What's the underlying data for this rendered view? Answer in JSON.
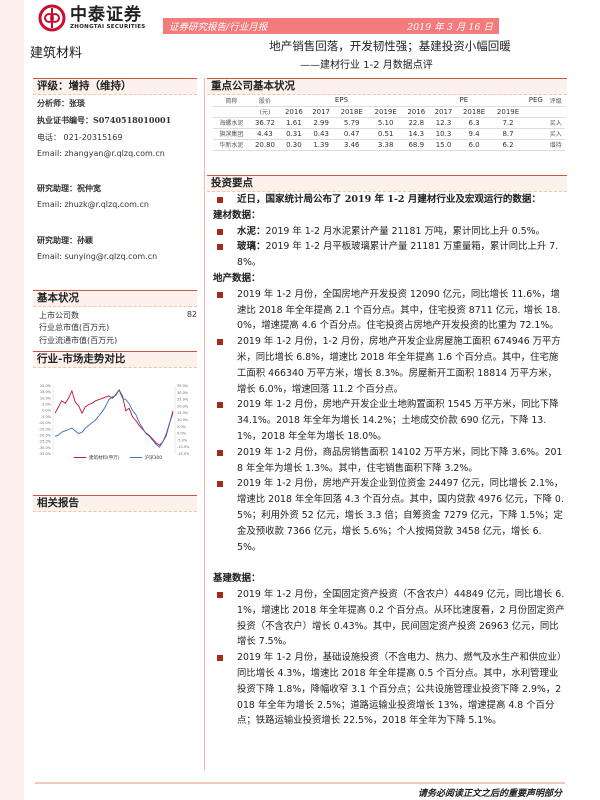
{
  "header": {
    "company_cn": "中泰证券",
    "company_en": "ZHONGTAI SECURITIES",
    "report_type": "证券研究报告/行业月报",
    "date": "2019 年 3 月 16 日",
    "sector": "建筑材料",
    "title": "地产销售回落，开发韧性强；基建投资小幅回暖",
    "subtitle": "——建材行业 1-2 月数据点评"
  },
  "left": {
    "rating": "评级：增持（维持）",
    "analyst": [
      {
        "label": "分析师：",
        "value": "张琰"
      },
      {
        "label": "执业证书编号：",
        "value": "S0740518010001"
      },
      {
        "label": "电话：",
        "value": "021-20315169"
      },
      {
        "label": "Email:",
        "value": "zhangyan@r.qlzq.com.cn"
      }
    ],
    "assistants": [
      {
        "label": "研究助理：",
        "name": "祝仲宽",
        "email_label": "Email:",
        "email": "zhuzk@r.qlzq.com.cn"
      },
      {
        "label": "研究助理：",
        "name": "孙颖",
        "email_label": "Email:",
        "email": "sunying@r.qlzq.com.cn"
      }
    ],
    "basic_title": "基本状况",
    "basic": [
      {
        "label": "上市公司数",
        "value": "82"
      },
      {
        "label": "行业总市值(百万元)",
        "value": ""
      },
      {
        "label": "行业流通市值(百万元)",
        "value": ""
      }
    ],
    "trend_title": "行业-市场走势对比",
    "related_title": "相关报告"
  },
  "table": {
    "title": "重点公司基本状况",
    "h": {
      "name": "简称",
      "price": "股价",
      "price_unit": "(元)",
      "eps": "EPS",
      "pe": "PE",
      "peg": "PEG",
      "rating": "评级",
      "years": [
        "2016",
        "2017",
        "2018E",
        "2019E"
      ]
    },
    "rows": [
      {
        "name": "海螺水泥",
        "price": "36.72",
        "eps": [
          "1.61",
          "2.99",
          "5.79",
          "5.10"
        ],
        "pe": [
          "22.8",
          "12.3",
          "6.3",
          "7.2"
        ],
        "peg": "",
        "rating": "买入"
      },
      {
        "name": "旗滨集团",
        "price": "4.43",
        "eps": [
          "0.31",
          "0.43",
          "0.47",
          "0.51"
        ],
        "pe": [
          "14.3",
          "10.3",
          "9.4",
          "8.7"
        ],
        "peg": "",
        "rating": "买入"
      },
      {
        "name": "华新水泥",
        "price": "20.80",
        "eps": [
          "0.30",
          "1.39",
          "3.46",
          "3.38"
        ],
        "pe": [
          "68.9",
          "15.0",
          "6.0",
          "6.2"
        ],
        "peg": "",
        "rating": "增持"
      }
    ]
  },
  "invest": {
    "title": "投资要点",
    "intro": "近日，国家统计局公布了 2019 年 1-2 月建材行业及宏观运行的数据：",
    "material_title": "建材数据：",
    "material": [
      {
        "k": "水泥：",
        "v": "2019 年 1-2 月水泥累计产量 21181 万吨，累计同比上升 0.5%。"
      },
      {
        "k": "玻璃：",
        "v": "2019 年 1-2 月平板玻璃累计产量 21181 万重量箱，累计同比上升 7.8%。"
      }
    ],
    "property_title": "地产数据：",
    "property": [
      "2019 年 1-2 月份，全国房地产开发投资 12090 亿元，同比增长 11.6%，增速比 2018 年全年提高 2.1 个百分点。其中，住宅投资 8711 亿元，增长 18.0%，增速提高 4.6 个百分点。住宅投资占房地产开发投资的比重为 72.1%。",
      "2019 年 1-2 月份，1-2 月份，房地产开发企业房屋施工面积 674946 万平方米，同比增长 6.8%，增速比 2018 年全年提高 1.6 个百分点。其中，住宅施工面积 466340 万平方米，增长 8.3%。房屋新开工面积 18814 万平方米，增长 6.0%，增速回落 11.2 个百分点。",
      "2019 年 1-2 月份，房地产开发企业土地购置面积 1545 万平方米，同比下降 34.1%。2018 年全年为增长 14.2%；土地成交价款 690 亿元，下降 13.1%，2018 年全年为增长 18.0%。",
      "2019 年 1-2 月份，商品房销售面积 14102 万平方米，同比下降 3.6%。2018 年全年为增长 1.3%。其中，住宅销售面积下降 3.2%。",
      "2019 年 1-2 月份，房地产开发企业到位资金 24497 亿元，同比增长 2.1%，增速比 2018 年全年回落 4.3 个百分点。其中，国内贷款 4976 亿元，下降 0.5%；利用外资 52 亿元，增长 3.3 倍；自筹资金 7279 亿元，下降 1.5%；定金及预收款 7366 亿元，增长 5.6%；个人按揭贷款 3458 亿元，增长 6.5%。"
    ],
    "infra_title": "基建数据：",
    "infra": [
      "2019 年 1-2 月份，全国固定资产投资（不含农户）44849 亿元，同比增长 6.1%，增速比 2018 年全年提高 0.2 个百分点。从环比速度看，2 月份固定资产投资（不含农户）增长 0.43%。其中，民间固定资产投资 26963 亿元，同比增长 7.5%。",
      "2019 年 1-2 月份，基础设施投资（不含电力、热力、燃气及水生产和供应业）同比增长 4.3%，增速比 2018 年全年提高 0.5 个百分点。其中，水利管理业投资下降 1.8%，降幅收窄 3.1 个百分点；公共设施管理业投资下降 2.9%，2018 年全年为增长 2.5%；道路运输业投资增长 13%，增速提高 4.8 个百分点；铁路运输业投资增长 22.5%，2018 年全年为下降 5.1%。"
    ]
  },
  "footer": "请务必阅读正文之后的重要声明部分",
  "chart_data": {
    "type": "line",
    "left_ticks": [
      "20.0%",
      "15.0%",
      "10.0%",
      "5.0%",
      "0.0%",
      "-5.0%",
      "-10.0%",
      "-15.0%",
      "-20.0%",
      "-25.0%",
      "-30.0%",
      "-35.0%"
    ],
    "right_ticks": [
      "35.0%",
      "30.0%",
      "25.0%",
      "20.0%",
      "15.0%",
      "10.0%",
      "5.0%",
      "0.0%",
      "-5.0%",
      "-10.0%",
      "-15.0%"
    ],
    "ylim_left": [
      -35,
      20
    ],
    "ylim_right": [
      -15,
      35
    ],
    "series": [
      {
        "name": "建筑材料(申万)",
        "axis": "left",
        "color": "#c8102e",
        "values": [
          -2,
          3,
          8,
          6,
          10,
          16,
          7,
          4,
          -2,
          3,
          5,
          6,
          8,
          9,
          10,
          11,
          12,
          10,
          13,
          17,
          12,
          0,
          2,
          -5,
          -8,
          -12,
          -15,
          -18,
          -20,
          -23,
          -26,
          -28,
          -25,
          -20,
          -10,
          0
        ]
      },
      {
        "name": "沪深300",
        "axis": "right",
        "color": "#3b6cc7",
        "values": [
          -2,
          -1,
          1,
          2,
          3,
          4,
          2,
          0,
          1,
          4,
          6,
          8,
          10,
          13,
          16,
          20,
          25,
          27,
          28,
          32,
          26,
          25,
          22,
          17,
          14,
          8,
          4,
          0,
          -2,
          -5,
          -8,
          -10,
          -6,
          0,
          8,
          15
        ]
      }
    ]
  }
}
